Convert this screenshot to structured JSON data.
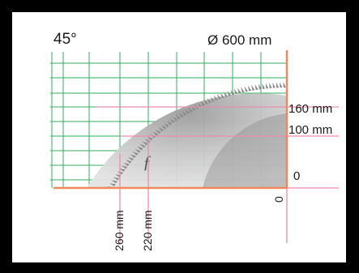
{
  "diagram": {
    "angle_label": "45°",
    "diameter_label": "Ø 600 mm",
    "height_labels": {
      "h160": "160 mm",
      "h100": "100 mm",
      "h0": "0"
    },
    "width_labels": {
      "w260": "260 mm",
      "w220": "220 mm",
      "w0": "0"
    },
    "colors": {
      "frame": "#000000",
      "grid": "#2fae5c",
      "axis": "#f08a5d",
      "guide": "#ea8ab0",
      "blade_body": "#bdbdbd",
      "blade_teeth": "#8a8a8a"
    },
    "blade_brand_text": "ƒ"
  }
}
